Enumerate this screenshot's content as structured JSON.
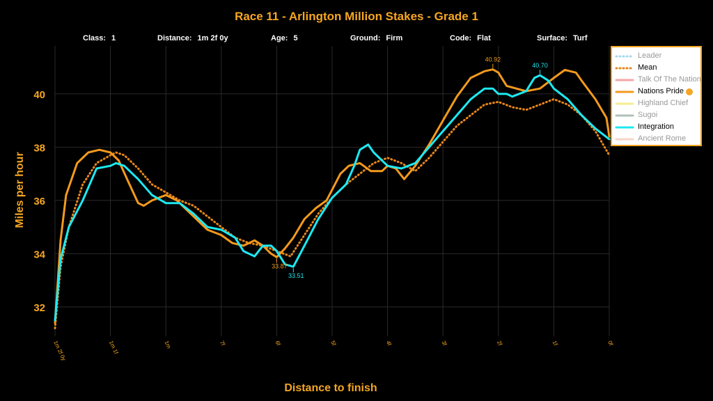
{
  "title": "Race 11 - Arlington Million Stakes - Grade 1",
  "race_info": [
    {
      "label": "Class:",
      "value": "1"
    },
    {
      "label": "Distance:",
      "value": "1m 2f 0y"
    },
    {
      "label": "Age:",
      "value": "5"
    },
    {
      "label": "Ground:",
      "value": "Firm"
    },
    {
      "label": "Code:",
      "value": "Flat"
    },
    {
      "label": "Surface:",
      "value": "Turf"
    }
  ],
  "colors": {
    "accent": "#f5a623",
    "background": "#000000",
    "grid": "#2a2a2a"
  },
  "legend": [
    {
      "name": "Leader",
      "color": "#7ec8e3",
      "dashed": true,
      "active": false,
      "medal": false
    },
    {
      "name": "Mean",
      "color": "#e8861a",
      "dashed": true,
      "active": true,
      "medal": false
    },
    {
      "name": "Talk Of The Nation",
      "color": "#f08080",
      "dashed": false,
      "active": false,
      "medal": false
    },
    {
      "name": "Nations Pride",
      "color": "#f39a1c",
      "dashed": false,
      "active": true,
      "medal": true
    },
    {
      "name": "Highland Chief",
      "color": "#f5e663",
      "dashed": false,
      "active": false,
      "medal": false
    },
    {
      "name": "Sugoi",
      "color": "#8fa89a",
      "dashed": false,
      "active": false,
      "medal": false
    },
    {
      "name": "Integration",
      "color": "#1de9f2",
      "dashed": false,
      "active": true,
      "medal": false
    },
    {
      "name": "Ancient Rome",
      "color": "#f5c6b0",
      "dashed": false,
      "active": false,
      "medal": false
    }
  ],
  "chart_data": {
    "type": "line",
    "title": "Race 11 - Arlington Million Stakes - Grade 1",
    "xlabel": "Distance to finish",
    "ylabel": "Miles per hour",
    "x_tick_labels": [
      "1m 2f 0y",
      "1m 1f",
      "1m",
      "7f",
      "6f",
      "5f",
      "4f",
      "3f",
      "2f",
      "1f",
      "0f"
    ],
    "xlim": [
      10,
      0
    ],
    "ylim": [
      30.9,
      41.8
    ],
    "y_ticks": [
      32,
      34,
      36,
      38,
      40
    ],
    "grid": true,
    "series": [
      {
        "name": "Mean",
        "style": "dotted",
        "color": "#e8861a",
        "x": [
          10,
          9.9,
          9.75,
          9.5,
          9.25,
          9.0,
          8.9,
          8.75,
          8.5,
          8.25,
          8.0,
          7.75,
          7.5,
          7.25,
          7.0,
          6.75,
          6.5,
          6.25,
          6.0,
          5.75,
          5.5,
          5.25,
          5.0,
          4.75,
          4.5,
          4.25,
          4.0,
          3.75,
          3.5,
          3.25,
          3.0,
          2.75,
          2.5,
          2.25,
          2.0,
          1.75,
          1.5,
          1.25,
          1.0,
          0.75,
          0.5,
          0.25,
          0
        ],
        "y": [
          31.2,
          33.5,
          35.0,
          36.6,
          37.4,
          37.7,
          37.8,
          37.7,
          37.2,
          36.6,
          36.3,
          36.0,
          35.8,
          35.4,
          35.0,
          34.6,
          34.4,
          34.3,
          34.1,
          33.9,
          34.7,
          35.5,
          36.1,
          36.6,
          37.0,
          37.4,
          37.6,
          37.4,
          37.1,
          37.6,
          38.2,
          38.8,
          39.2,
          39.6,
          39.7,
          39.5,
          39.4,
          39.6,
          39.8,
          39.6,
          39.2,
          38.6,
          37.7
        ]
      },
      {
        "name": "Nations Pride",
        "style": "solid",
        "color": "#f39a1c",
        "x": [
          10,
          9.9,
          9.8,
          9.6,
          9.4,
          9.2,
          9.0,
          8.85,
          8.7,
          8.5,
          8.4,
          8.25,
          8.0,
          7.8,
          7.6,
          7.4,
          7.25,
          7.0,
          6.8,
          6.6,
          6.5,
          6.4,
          6.25,
          6.1,
          6.0,
          5.85,
          5.7,
          5.5,
          5.3,
          5.1,
          5.0,
          4.85,
          4.7,
          4.5,
          4.3,
          4.1,
          4.0,
          3.85,
          3.7,
          3.5,
          3.25,
          3.0,
          2.75,
          2.5,
          2.25,
          2.1,
          2.0,
          1.85,
          1.5,
          1.25,
          1.0,
          0.8,
          0.6,
          0.5,
          0.25,
          0.05,
          0
        ],
        "y": [
          31.4,
          34.5,
          36.2,
          37.4,
          37.8,
          37.9,
          37.8,
          37.5,
          36.8,
          35.9,
          35.8,
          36.0,
          36.2,
          36.0,
          35.6,
          35.2,
          34.9,
          34.7,
          34.4,
          34.3,
          34.4,
          34.5,
          34.3,
          34.0,
          33.87,
          34.2,
          34.6,
          35.3,
          35.7,
          36.0,
          36.4,
          37.0,
          37.3,
          37.4,
          37.1,
          37.1,
          37.3,
          37.2,
          36.8,
          37.3,
          38.1,
          39.0,
          39.9,
          40.6,
          40.85,
          40.92,
          40.8,
          40.3,
          40.1,
          40.2,
          40.6,
          40.9,
          40.8,
          40.5,
          39.8,
          39.1,
          38.4
        ]
      },
      {
        "name": "Integration",
        "style": "solid",
        "color": "#1de9f2",
        "x": [
          10,
          9.9,
          9.75,
          9.5,
          9.25,
          9.0,
          8.9,
          8.75,
          8.5,
          8.25,
          8.0,
          7.75,
          7.5,
          7.25,
          7.0,
          6.75,
          6.6,
          6.4,
          6.25,
          6.1,
          6.0,
          5.85,
          5.7,
          5.5,
          5.25,
          5.0,
          4.75,
          4.6,
          4.5,
          4.35,
          4.25,
          4.0,
          3.75,
          3.5,
          3.25,
          3.0,
          2.75,
          2.5,
          2.25,
          2.1,
          2.0,
          1.85,
          1.75,
          1.5,
          1.35,
          1.25,
          1.1,
          1.0,
          0.75,
          0.5,
          0.25,
          0
        ],
        "y": [
          31.5,
          33.8,
          35.0,
          36.0,
          37.2,
          37.3,
          37.4,
          37.3,
          36.8,
          36.2,
          35.9,
          35.9,
          35.5,
          35.0,
          34.9,
          34.6,
          34.1,
          33.9,
          34.3,
          34.3,
          34.1,
          33.6,
          33.51,
          34.3,
          35.3,
          36.1,
          36.6,
          37.3,
          37.9,
          38.1,
          37.8,
          37.3,
          37.2,
          37.4,
          38.0,
          38.6,
          39.2,
          39.8,
          40.2,
          40.2,
          40.0,
          40.0,
          39.9,
          40.1,
          40.6,
          40.7,
          40.5,
          40.2,
          39.8,
          39.2,
          38.7,
          38.3
        ]
      }
    ],
    "annotations": [
      {
        "series": "Nations Pride",
        "x": 2.1,
        "y": 40.92,
        "text": "40.92",
        "color": "#f39a1c",
        "position": "above"
      },
      {
        "series": "Integration",
        "x": 1.25,
        "y": 40.7,
        "text": "40.70",
        "color": "#1de9f2",
        "position": "above"
      },
      {
        "series": "Nations Pride",
        "x": 6.0,
        "y": 33.87,
        "text": "33.87",
        "color": "#f39a1c",
        "position": "below"
      },
      {
        "series": "Integration",
        "x": 5.7,
        "y": 33.51,
        "text": "33.51",
        "color": "#1de9f2",
        "position": "below"
      }
    ]
  }
}
